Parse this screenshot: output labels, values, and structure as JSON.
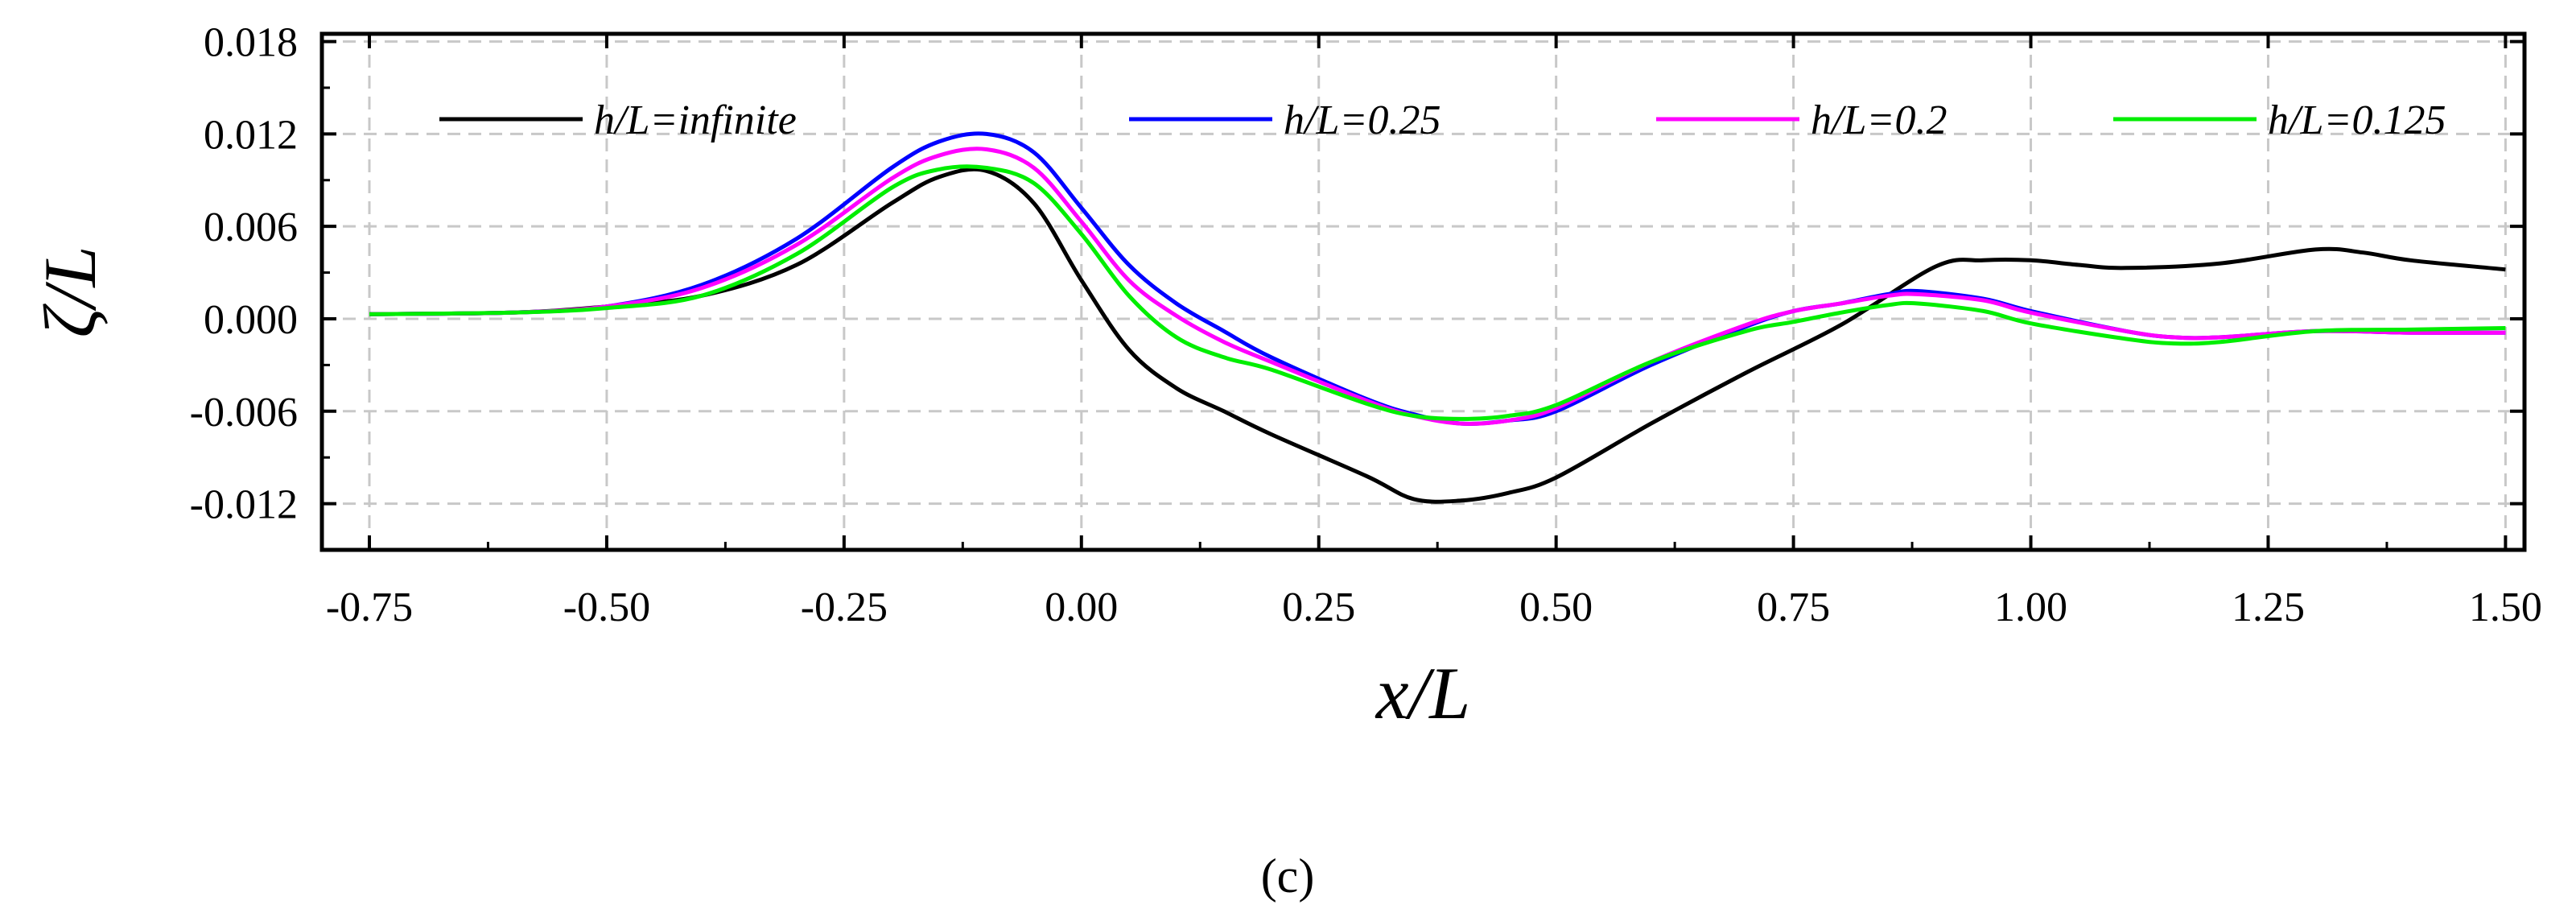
{
  "chart_data": {
    "type": "line",
    "title": "",
    "xlabel": "x/L",
    "ylabel": "ζ/L",
    "xlim": [
      -0.8,
      1.52
    ],
    "ylim": [
      -0.015,
      0.0185
    ],
    "grid": true,
    "legend_position": "top",
    "x_ticks": [
      -0.75,
      -0.5,
      -0.25,
      0.0,
      0.25,
      0.5,
      0.75,
      1.0,
      1.25,
      1.5
    ],
    "x_tick_labels": [
      "-0.75",
      "-0.50",
      "-0.25",
      "0.00",
      "0.25",
      "0.50",
      "0.75",
      "1.00",
      "1.25",
      "1.50"
    ],
    "y_ticks": [
      -0.012,
      -0.006,
      0.0,
      0.006,
      0.012,
      0.018
    ],
    "y_tick_labels": [
      "-0.012",
      "-0.006",
      "0.000",
      "0.006",
      "0.012",
      "0.018"
    ],
    "caption": "(c)",
    "series": [
      {
        "name": "h/L=infinite",
        "color": "#000000",
        "x": [
          -0.75,
          -0.6,
          -0.5,
          -0.4,
          -0.3,
          -0.2,
          -0.15,
          -0.1,
          -0.05,
          0.0,
          0.05,
          0.1,
          0.15,
          0.2,
          0.3,
          0.35,
          0.4,
          0.45,
          0.5,
          0.6,
          0.7,
          0.8,
          0.9,
          0.95,
          1.0,
          1.05,
          1.1,
          1.2,
          1.3,
          1.35,
          1.4,
          1.5
        ],
        "y": [
          0.0003,
          0.0004,
          0.0008,
          0.0015,
          0.0035,
          0.0075,
          0.0092,
          0.0096,
          0.0075,
          0.0025,
          -0.002,
          -0.0045,
          -0.006,
          -0.0075,
          -0.0102,
          -0.0117,
          -0.0118,
          -0.0113,
          -0.0103,
          -0.0068,
          -0.0035,
          -0.0004,
          0.0034,
          0.0038,
          0.0038,
          0.0035,
          0.0033,
          0.0036,
          0.0045,
          0.0043,
          0.0038,
          0.0032
        ]
      },
      {
        "name": "h/L=0.25",
        "color": "#0000ff",
        "x": [
          -0.75,
          -0.6,
          -0.5,
          -0.4,
          -0.3,
          -0.2,
          -0.15,
          -0.1,
          -0.05,
          0.0,
          0.05,
          0.1,
          0.15,
          0.2,
          0.3,
          0.35,
          0.4,
          0.45,
          0.5,
          0.6,
          0.7,
          0.75,
          0.8,
          0.85,
          0.88,
          0.95,
          1.0,
          1.1,
          1.15,
          1.2,
          1.3,
          1.4,
          1.5
        ],
        "y": [
          0.0003,
          0.0004,
          0.0008,
          0.0022,
          0.0052,
          0.0098,
          0.0115,
          0.012,
          0.0108,
          0.0072,
          0.0035,
          0.001,
          -0.0008,
          -0.0025,
          -0.0052,
          -0.0062,
          -0.0068,
          -0.0066,
          -0.006,
          -0.003,
          -0.0005,
          0.0005,
          0.001,
          0.0016,
          0.0018,
          0.0013,
          0.0005,
          -0.0008,
          -0.0012,
          -0.0012,
          -0.0008,
          -0.0009,
          -0.0009
        ]
      },
      {
        "name": "h/L=0.2",
        "color": "#ff00ff",
        "x": [
          -0.75,
          -0.6,
          -0.5,
          -0.4,
          -0.3,
          -0.2,
          -0.15,
          -0.1,
          -0.05,
          0.0,
          0.05,
          0.1,
          0.15,
          0.2,
          0.3,
          0.35,
          0.4,
          0.45,
          0.5,
          0.6,
          0.7,
          0.75,
          0.8,
          0.85,
          0.88,
          0.95,
          1.0,
          1.1,
          1.15,
          1.2,
          1.3,
          1.4,
          1.5
        ],
        "y": [
          0.0003,
          0.0004,
          0.0008,
          0.002,
          0.0048,
          0.0091,
          0.0106,
          0.011,
          0.0098,
          0.0063,
          0.0025,
          0.0002,
          -0.0015,
          -0.0028,
          -0.0053,
          -0.0063,
          -0.0068,
          -0.0066,
          -0.0058,
          -0.0028,
          -0.0004,
          0.0005,
          0.001,
          0.0015,
          0.0016,
          0.0012,
          0.0004,
          -0.0008,
          -0.0012,
          -0.0012,
          -0.0008,
          -0.0009,
          -0.0009
        ]
      },
      {
        "name": "h/L=0.125",
        "color": "#00ee00",
        "x": [
          -0.75,
          -0.6,
          -0.5,
          -0.4,
          -0.3,
          -0.2,
          -0.15,
          -0.1,
          -0.05,
          0.0,
          0.05,
          0.1,
          0.15,
          0.2,
          0.3,
          0.35,
          0.4,
          0.45,
          0.5,
          0.6,
          0.7,
          0.75,
          0.8,
          0.85,
          0.88,
          0.95,
          1.0,
          1.1,
          1.15,
          1.2,
          1.3,
          1.4,
          1.5
        ],
        "y": [
          0.0003,
          0.0004,
          0.0007,
          0.0015,
          0.0042,
          0.0085,
          0.0097,
          0.0098,
          0.0088,
          0.0055,
          0.0015,
          -0.0012,
          -0.0025,
          -0.0033,
          -0.0055,
          -0.0063,
          -0.0065,
          -0.0063,
          -0.0056,
          -0.0028,
          -0.0008,
          -0.0002,
          0.0004,
          0.0009,
          0.001,
          0.0005,
          -0.0003,
          -0.0013,
          -0.0016,
          -0.0015,
          -0.0008,
          -0.0007,
          -0.0006
        ]
      }
    ]
  }
}
